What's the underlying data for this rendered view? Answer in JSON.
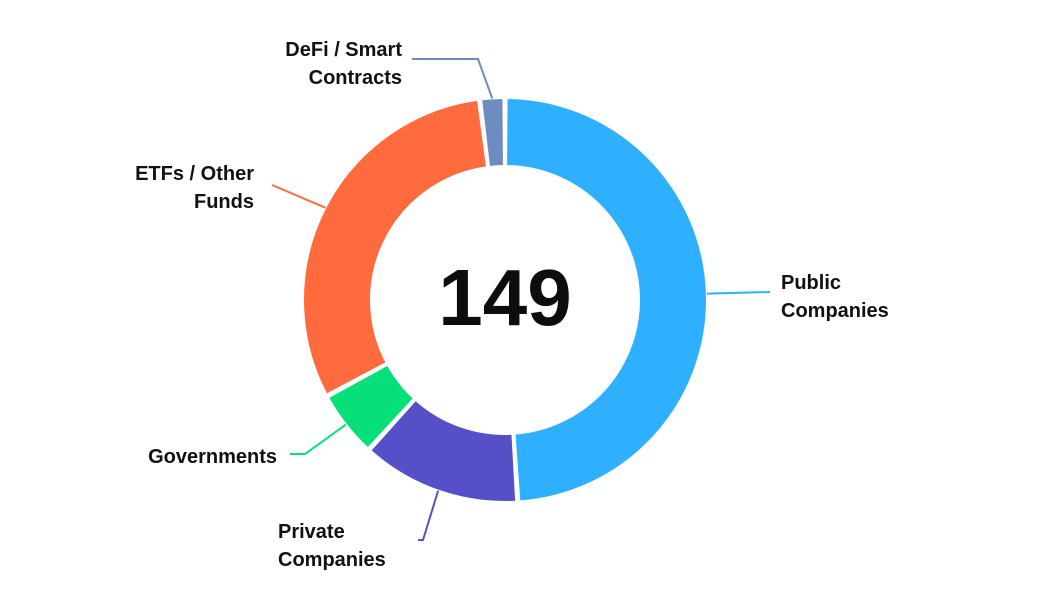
{
  "chart_data": {
    "type": "pie",
    "center_label": "149",
    "categories": [
      "Public Companies",
      "Private Companies",
      "Governments",
      "ETFs / Other Funds",
      "DeFi / Smart Contracts"
    ],
    "label_lines": [
      [
        "Public",
        "Companies"
      ],
      [
        "Private",
        "Companies"
      ],
      [
        "Governments"
      ],
      [
        "ETFs / Other",
        "Funds"
      ],
      [
        "DeFi / Smart",
        "Contracts"
      ]
    ],
    "values": [
      73,
      19,
      8,
      46,
      3
    ],
    "colors": [
      "#2FB0FF",
      "#5650C8",
      "#07E078",
      "#FF6B3D",
      "#6E8CC0"
    ],
    "legend": "none"
  }
}
